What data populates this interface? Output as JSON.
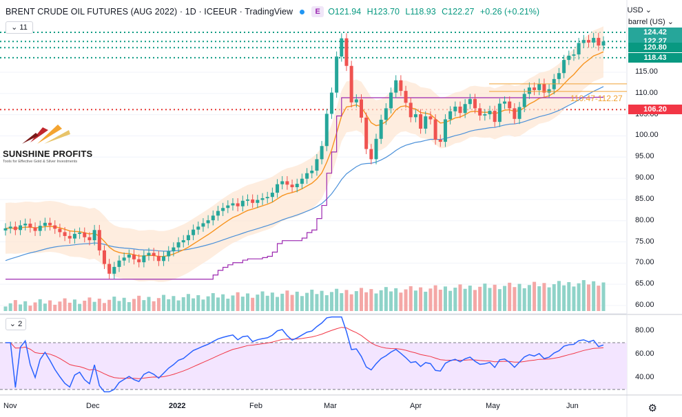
{
  "header": {
    "symbol": "BRENT CRUDE OIL FUTURES (AUG 2022) · 1D · ICEEUR · TradingView",
    "badge": "E",
    "open": "O121.94",
    "high": "H123.70",
    "low": "L118.93",
    "close": "C122.27",
    "change": "+0.26 (+0.21%)",
    "indicators_toggle": "11"
  },
  "scale": {
    "currency": "USD",
    "unit": "barrel (US)",
    "ticks": [
      "115.00",
      "110.00",
      "105.00",
      "100.00",
      "95.00",
      "90.00",
      "85.00",
      "80.00",
      "75.00",
      "70.00",
      "65.00",
      "60.00"
    ],
    "tick_values": [
      115,
      110,
      105,
      100,
      95,
      90,
      85,
      80,
      75,
      70,
      65,
      60
    ]
  },
  "price_labels": [
    {
      "text": "124.42",
      "value": 124.42,
      "bg": "#26a69a"
    },
    {
      "text": "122.27",
      "value": 122.27,
      "bg": "#26a69a"
    },
    {
      "text": "120.80",
      "value": 120.8,
      "bg": "#089981"
    },
    {
      "text": "118.43",
      "value": 118.43,
      "bg": "#089981"
    },
    {
      "text": "106.20",
      "value": 106.2,
      "bg": "#f23645"
    }
  ],
  "range_annotation": "110.47-112.27",
  "logo": {
    "name": "SUNSHINE PROFITS",
    "tagline": "Tools for Effective Gold & Silver Investments"
  },
  "time_axis": [
    "Nov",
    "Dec",
    "2022",
    "Feb",
    "Mar",
    "Apr",
    "May",
    "Jun"
  ],
  "rsi": {
    "label": "2",
    "ticks": [
      "80.00",
      "60.00",
      "40.00"
    ],
    "tick_values": [
      80,
      60,
      40
    ],
    "upper_band": 70,
    "lower_band": 30
  },
  "colors": {
    "up": "#26a69a",
    "down": "#ef5350",
    "ma_fast": "#f7931e",
    "ma_slow": "#4a90d9",
    "stop": "#9c27b0",
    "rsi_line": "#2962ff",
    "rsi_ma": "#f23645",
    "rsi_bg": "#f3e5ff"
  },
  "chart_data": {
    "type": "line",
    "title": "BRENT CRUDE OIL FUTURES (AUG 2022)",
    "xlabel": "",
    "ylabel": "",
    "ylim": [
      59,
      126
    ],
    "series": [
      {
        "values": [
          78.2,
          78.6,
          77.8,
          78.9,
          79.3,
          78.4,
          77.6,
          78.8,
          79.5,
          78.9,
          78.1,
          77.3,
          76.4,
          75.8,
          76.9,
          77.2,
          76.1,
          75.4,
          77.8,
          73.0,
          69.8,
          67.5,
          69.1,
          70.6,
          71.3,
          72.0,
          70.9,
          70.2,
          71.8,
          72.4,
          71.7,
          70.5,
          71.6,
          72.8,
          73.7,
          74.9,
          75.4,
          76.6,
          77.9,
          78.6,
          79.4,
          80.1,
          81.2,
          82.3,
          83.0,
          83.6,
          84.1,
          83.4,
          84.7,
          85.0,
          84.2,
          84.9,
          85.3,
          85.6,
          86.6,
          88.6,
          89.3,
          88.5,
          87.9,
          88.7,
          89.9,
          91.2,
          91.8,
          94.5,
          97.6,
          105.2,
          110.2,
          118.7,
          123.0,
          116.5,
          107.9,
          108.6,
          104.3,
          96.9,
          94.5,
          99.3,
          103.8,
          106.5,
          110.2,
          113.1,
          110.6,
          107.8,
          104.4,
          105.1,
          101.7,
          104.6,
          103.9,
          99.1,
          98.6,
          103.9,
          105.8,
          106.9,
          105.4,
          107.5,
          108.7,
          106.5,
          104.8,
          105.1,
          105.9,
          103.3,
          107.6,
          108.1,
          106.5,
          104.0,
          106.8,
          109.9,
          111.4,
          110.8,
          112.3,
          110.2,
          111.0,
          113.4,
          114.8,
          117.9,
          118.9,
          119.2,
          121.9,
          122.6,
          122.0,
          123.1,
          121.3,
          122.27
        ]
      }
    ]
  }
}
